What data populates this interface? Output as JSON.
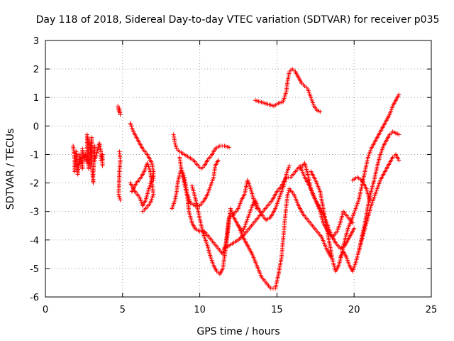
{
  "chart_data": {
    "type": "scatter",
    "title": "Day 118 of 2018, Sidereal Day-to-day VTEC variation (SDTVAR) for receiver p035",
    "xlabel": "GPS time / hours",
    "ylabel": "SDTVAR / TECUs",
    "xlim": [
      0,
      25
    ],
    "ylim": [
      -6,
      3
    ],
    "xticks": [
      "0",
      "5",
      "10",
      "15",
      "20",
      "25"
    ],
    "yticks": [
      "-6",
      "-5",
      "-4",
      "-3",
      "-2",
      "-1",
      "0",
      "1",
      "2",
      "3"
    ],
    "grid": true,
    "marker": "plus",
    "color": "#ff0000",
    "series": [
      {
        "points": [
          [
            1.8,
            -0.7
          ],
          [
            1.9,
            -1.2
          ],
          [
            1.9,
            -1.6
          ],
          [
            2.0,
            -0.9
          ],
          [
            2.1,
            -1.4
          ],
          [
            2.1,
            -1.7
          ],
          [
            2.2,
            -1.0
          ],
          [
            2.2,
            -1.3
          ],
          [
            2.3,
            -1.1
          ],
          [
            2.4,
            -1.5
          ],
          [
            2.4,
            -0.8
          ],
          [
            2.5,
            -1.2
          ],
          [
            2.6,
            -1.0
          ],
          [
            2.7,
            -1.3
          ],
          [
            2.7,
            -0.3
          ],
          [
            2.8,
            -0.6
          ],
          [
            2.8,
            -1.5
          ],
          [
            2.9,
            -1.1
          ],
          [
            3.0,
            -0.4
          ],
          [
            3.0,
            -0.9
          ],
          [
            3.0,
            -1.3
          ],
          [
            3.1,
            -2.0
          ],
          [
            3.1,
            -1.7
          ],
          [
            3.2,
            -0.7
          ],
          [
            3.2,
            -1.2
          ],
          [
            3.5,
            -0.6
          ],
          [
            3.6,
            -0.9
          ],
          [
            3.6,
            -1.2
          ],
          [
            3.7,
            -1.0
          ],
          [
            3.7,
            -1.4
          ]
        ]
      },
      {
        "points": [
          [
            4.7,
            0.7
          ],
          [
            4.75,
            0.5
          ],
          [
            4.8,
            0.6
          ],
          [
            4.85,
            0.4
          ],
          [
            4.8,
            -0.9
          ],
          [
            4.85,
            -1.2
          ],
          [
            4.8,
            -1.6
          ],
          [
            4.75,
            -2.4
          ],
          [
            4.85,
            -2.6
          ]
        ]
      },
      {
        "points": [
          [
            5.5,
            0.1
          ],
          [
            5.7,
            -0.2
          ],
          [
            5.9,
            -0.4
          ],
          [
            6.1,
            -0.6
          ],
          [
            6.3,
            -0.8
          ],
          [
            6.6,
            -1.0
          ],
          [
            6.9,
            -1.3
          ],
          [
            7.0,
            -1.6
          ],
          [
            7.0,
            -1.9
          ]
        ]
      },
      {
        "points": [
          [
            5.5,
            -2.0
          ],
          [
            5.8,
            -2.3
          ],
          [
            6.1,
            -2.5
          ],
          [
            6.3,
            -2.8
          ],
          [
            6.5,
            -2.6
          ],
          [
            6.7,
            -2.2
          ],
          [
            6.9,
            -1.9
          ],
          [
            7.0,
            -1.6
          ]
        ]
      },
      {
        "points": [
          [
            5.6,
            -2.3
          ],
          [
            5.9,
            -2.0
          ],
          [
            6.2,
            -1.8
          ],
          [
            6.4,
            -1.6
          ],
          [
            6.6,
            -1.3
          ],
          [
            6.8,
            -1.6
          ],
          [
            6.9,
            -2.0
          ],
          [
            7.0,
            -2.4
          ],
          [
            6.8,
            -2.7
          ],
          [
            6.5,
            -2.9
          ],
          [
            6.3,
            -3.0
          ]
        ]
      },
      {
        "points": [
          [
            8.3,
            -0.3
          ],
          [
            8.4,
            -0.6
          ],
          [
            8.5,
            -0.8
          ],
          [
            8.7,
            -0.9
          ],
          [
            9.0,
            -1.0
          ],
          [
            9.3,
            -1.1
          ],
          [
            9.6,
            -1.2
          ],
          [
            9.9,
            -1.4
          ],
          [
            10.1,
            -1.5
          ],
          [
            10.3,
            -1.4
          ],
          [
            10.5,
            -1.2
          ],
          [
            10.8,
            -1.0
          ],
          [
            11.0,
            -0.8
          ],
          [
            11.3,
            -0.7
          ],
          [
            11.6,
            -0.7
          ],
          [
            11.9,
            -0.75
          ]
        ]
      },
      {
        "points": [
          [
            8.2,
            -2.9
          ],
          [
            8.4,
            -2.6
          ],
          [
            8.5,
            -2.3
          ],
          [
            8.6,
            -1.9
          ],
          [
            8.8,
            -1.5
          ],
          [
            9.0,
            -1.8
          ],
          [
            9.1,
            -2.1
          ],
          [
            9.2,
            -2.4
          ],
          [
            9.4,
            -2.7
          ],
          [
            9.7,
            -2.8
          ],
          [
            10.0,
            -2.8
          ],
          [
            10.3,
            -2.6
          ],
          [
            10.5,
            -2.4
          ],
          [
            10.7,
            -2.1
          ],
          [
            10.9,
            -1.8
          ],
          [
            11.0,
            -1.4
          ],
          [
            11.2,
            -1.2
          ]
        ]
      },
      {
        "points": [
          [
            8.7,
            -1.1
          ],
          [
            8.8,
            -1.5
          ],
          [
            9.0,
            -2.0
          ],
          [
            9.2,
            -2.5
          ],
          [
            9.3,
            -3.0
          ],
          [
            9.5,
            -3.4
          ],
          [
            9.7,
            -3.6
          ],
          [
            10.0,
            -3.7
          ],
          [
            10.3,
            -3.7
          ],
          [
            10.6,
            -3.9
          ],
          [
            10.9,
            -4.1
          ],
          [
            11.2,
            -4.3
          ],
          [
            11.5,
            -4.5
          ],
          [
            11.7,
            -4.1
          ],
          [
            11.8,
            -3.6
          ],
          [
            11.9,
            -3.2
          ],
          [
            12.2,
            -3.1
          ],
          [
            12.5,
            -2.9
          ],
          [
            12.7,
            -2.6
          ],
          [
            12.9,
            -2.4
          ],
          [
            13.1,
            -1.9
          ],
          [
            13.3,
            -2.2
          ],
          [
            13.5,
            -2.6
          ],
          [
            13.7,
            -2.9
          ]
        ]
      },
      {
        "points": [
          [
            9.5,
            -2.1
          ],
          [
            9.7,
            -2.5
          ],
          [
            9.9,
            -3.0
          ],
          [
            10.1,
            -3.5
          ],
          [
            10.3,
            -3.9
          ],
          [
            10.5,
            -4.2
          ],
          [
            10.7,
            -4.6
          ],
          [
            10.9,
            -4.9
          ],
          [
            11.1,
            -5.1
          ],
          [
            11.3,
            -5.2
          ],
          [
            11.5,
            -5.0
          ],
          [
            11.6,
            -4.6
          ],
          [
            11.7,
            -4.2
          ],
          [
            11.8,
            -3.8
          ],
          [
            11.9,
            -3.3
          ],
          [
            12.0,
            -2.9
          ],
          [
            12.2,
            -3.2
          ],
          [
            12.5,
            -3.5
          ],
          [
            12.8,
            -3.7
          ],
          [
            13.0,
            -3.4
          ],
          [
            13.2,
            -3.1
          ],
          [
            13.4,
            -2.8
          ],
          [
            13.6,
            -2.6
          ],
          [
            13.8,
            -2.9
          ],
          [
            14.0,
            -3.1
          ],
          [
            14.3,
            -3.3
          ],
          [
            14.6,
            -3.2
          ],
          [
            14.9,
            -2.9
          ],
          [
            15.1,
            -2.6
          ],
          [
            15.3,
            -2.3
          ],
          [
            15.5,
            -2.0
          ],
          [
            15.6,
            -1.7
          ],
          [
            15.8,
            -1.4
          ]
        ]
      },
      {
        "points": [
          [
            12.5,
            -3.5
          ],
          [
            12.8,
            -3.9
          ],
          [
            13.1,
            -4.2
          ],
          [
            13.4,
            -4.5
          ],
          [
            13.7,
            -4.9
          ],
          [
            14.0,
            -5.3
          ],
          [
            14.3,
            -5.5
          ],
          [
            14.6,
            -5.7
          ],
          [
            14.9,
            -5.7
          ],
          [
            15.1,
            -5.2
          ],
          [
            15.3,
            -4.6
          ],
          [
            15.4,
            -4.0
          ],
          [
            15.5,
            -3.4
          ],
          [
            15.6,
            -2.8
          ],
          [
            15.7,
            -2.4
          ],
          [
            15.8,
            -2.2
          ],
          [
            16.1,
            -2.4
          ],
          [
            16.4,
            -2.8
          ],
          [
            16.7,
            -3.1
          ],
          [
            17.0,
            -3.3
          ],
          [
            17.3,
            -3.5
          ],
          [
            17.6,
            -3.7
          ],
          [
            17.9,
            -3.9
          ],
          [
            18.2,
            -4.3
          ],
          [
            18.5,
            -4.6
          ]
        ]
      },
      {
        "points": [
          [
            11.6,
            -4.3
          ],
          [
            11.9,
            -4.2
          ],
          [
            12.2,
            -4.1
          ],
          [
            12.5,
            -4.0
          ],
          [
            12.9,
            -3.8
          ],
          [
            13.2,
            -3.6
          ],
          [
            13.5,
            -3.4
          ],
          [
            13.8,
            -3.2
          ],
          [
            14.1,
            -3.0
          ],
          [
            14.4,
            -2.8
          ],
          [
            14.7,
            -2.6
          ],
          [
            15.0,
            -2.3
          ],
          [
            15.3,
            -2.1
          ],
          [
            15.6,
            -1.8
          ],
          [
            15.9,
            -1.8
          ],
          [
            16.2,
            -1.6
          ],
          [
            16.5,
            -1.4
          ],
          [
            16.8,
            -1.8
          ],
          [
            17.1,
            -2.1
          ],
          [
            17.4,
            -2.5
          ],
          [
            17.7,
            -2.8
          ],
          [
            18.0,
            -3.1
          ],
          [
            18.3,
            -3.5
          ],
          [
            18.5,
            -3.8
          ],
          [
            18.8,
            -4.1
          ],
          [
            19.1,
            -4.3
          ],
          [
            19.4,
            -4.2
          ],
          [
            19.7,
            -3.9
          ],
          [
            20.0,
            -3.6
          ]
        ]
      },
      {
        "points": [
          [
            16.5,
            -1.5
          ],
          [
            16.8,
            -1.3
          ],
          [
            17.0,
            -1.7
          ],
          [
            17.2,
            -2.2
          ],
          [
            17.5,
            -2.6
          ],
          [
            17.8,
            -3.0
          ],
          [
            18.0,
            -3.4
          ],
          [
            18.3,
            -3.7
          ],
          [
            18.6,
            -3.9
          ],
          [
            18.9,
            -3.7
          ],
          [
            19.1,
            -3.4
          ],
          [
            19.3,
            -3.0
          ],
          [
            19.6,
            -3.2
          ],
          [
            19.9,
            -3.4
          ]
        ]
      },
      {
        "points": [
          [
            17.2,
            -1.6
          ],
          [
            17.5,
            -1.9
          ],
          [
            17.8,
            -2.3
          ],
          [
            18.0,
            -2.9
          ],
          [
            18.2,
            -3.5
          ],
          [
            18.4,
            -4.1
          ],
          [
            18.6,
            -4.7
          ],
          [
            18.8,
            -5.1
          ],
          [
            19.0,
            -4.9
          ],
          [
            19.2,
            -4.5
          ],
          [
            19.4,
            -4.0
          ],
          [
            19.6,
            -3.6
          ],
          [
            19.9,
            -3.2
          ],
          [
            20.1,
            -2.9
          ],
          [
            20.3,
            -2.6
          ],
          [
            20.5,
            -2.1
          ],
          [
            20.7,
            -1.6
          ],
          [
            20.9,
            -1.1
          ],
          [
            21.1,
            -0.8
          ],
          [
            21.3,
            -0.6
          ],
          [
            21.5,
            -0.4
          ],
          [
            21.7,
            -0.2
          ],
          [
            21.9,
            0.0
          ],
          [
            22.1,
            0.2
          ],
          [
            22.3,
            0.4
          ],
          [
            22.5,
            0.7
          ],
          [
            22.7,
            0.9
          ],
          [
            22.9,
            1.1
          ]
        ]
      },
      {
        "points": [
          [
            19.1,
            -4.6
          ],
          [
            19.3,
            -4.4
          ],
          [
            19.5,
            -4.6
          ],
          [
            19.7,
            -4.9
          ],
          [
            19.9,
            -5.1
          ],
          [
            20.1,
            -4.8
          ],
          [
            20.3,
            -4.4
          ],
          [
            20.5,
            -3.9
          ],
          [
            20.7,
            -3.4
          ],
          [
            20.9,
            -2.8
          ],
          [
            21.1,
            -2.3
          ],
          [
            21.3,
            -1.9
          ],
          [
            21.5,
            -1.4
          ],
          [
            21.7,
            -1.0
          ],
          [
            21.9,
            -0.7
          ],
          [
            22.1,
            -0.5
          ],
          [
            22.3,
            -0.3
          ],
          [
            22.5,
            -0.2
          ],
          [
            22.7,
            -0.25
          ],
          [
            22.9,
            -0.3
          ]
        ]
      },
      {
        "points": [
          [
            20.3,
            -4.4
          ],
          [
            20.5,
            -4.0
          ],
          [
            20.7,
            -3.6
          ],
          [
            20.9,
            -3.2
          ],
          [
            21.1,
            -2.8
          ],
          [
            21.3,
            -2.5
          ],
          [
            21.5,
            -2.2
          ],
          [
            21.7,
            -1.9
          ],
          [
            21.9,
            -1.7
          ],
          [
            22.1,
            -1.5
          ],
          [
            22.3,
            -1.3
          ],
          [
            22.5,
            -1.1
          ],
          [
            22.7,
            -1.0
          ],
          [
            22.9,
            -1.2
          ]
        ]
      },
      {
        "points": [
          [
            19.9,
            -1.9
          ],
          [
            20.2,
            -1.8
          ],
          [
            20.5,
            -1.9
          ],
          [
            20.8,
            -2.2
          ],
          [
            21.0,
            -2.6
          ]
        ]
      },
      {
        "points": [
          [
            13.6,
            0.9
          ],
          [
            13.9,
            0.85
          ],
          [
            14.2,
            0.8
          ],
          [
            14.5,
            0.75
          ],
          [
            14.8,
            0.7
          ],
          [
            15.1,
            0.8
          ],
          [
            15.4,
            0.85
          ],
          [
            15.6,
            1.2
          ],
          [
            15.7,
            1.6
          ],
          [
            15.8,
            1.9
          ],
          [
            16.0,
            2.0
          ],
          [
            16.2,
            1.9
          ],
          [
            16.4,
            1.7
          ],
          [
            16.6,
            1.5
          ],
          [
            16.8,
            1.4
          ],
          [
            17.0,
            1.3
          ],
          [
            17.2,
            1.0
          ],
          [
            17.4,
            0.7
          ],
          [
            17.6,
            0.55
          ],
          [
            17.8,
            0.5
          ]
        ]
      }
    ]
  }
}
